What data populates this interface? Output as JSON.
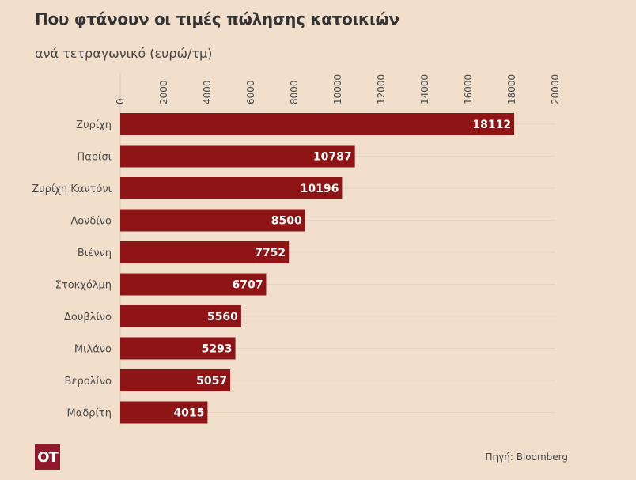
{
  "header": {
    "title": "Που φτάνουν οι τιμές πώλησης κατοικιών",
    "subtitle": "ανά τετραγωνικό (ευρώ/τμ)"
  },
  "footer": {
    "logo_text": "OT",
    "source": "Πηγή: Bloomberg"
  },
  "colors": {
    "bar": "#8f1416",
    "background": "#f1dfcc",
    "logo": "#8e1a2b"
  },
  "chart_data": {
    "type": "bar",
    "orientation": "horizontal",
    "title": "Που φτάνουν οι τιμές πώλησης κατοικιών",
    "subtitle": "ανά τετραγωνικό (ευρώ/τμ)",
    "categories": [
      "Ζυρίχη",
      "Παρίσι",
      "Ζυρίχη Καντόνι",
      "Λονδίνο",
      "Βιέννη",
      "Στοκχόλμη",
      "Δουβλίνο",
      "Μιλάνο",
      "Βερολίνο",
      "Μαδρίτη"
    ],
    "values": [
      18112,
      10787,
      10196,
      8500,
      7752,
      6707,
      5560,
      5293,
      5057,
      4015
    ],
    "xlim": [
      0,
      20000
    ],
    "x_ticks": [
      0,
      2000,
      4000,
      6000,
      8000,
      10000,
      12000,
      14000,
      16000,
      18000,
      20000
    ],
    "x_axis_position": "top",
    "grid": true,
    "data_labels": true,
    "xlabel": "",
    "ylabel": ""
  }
}
